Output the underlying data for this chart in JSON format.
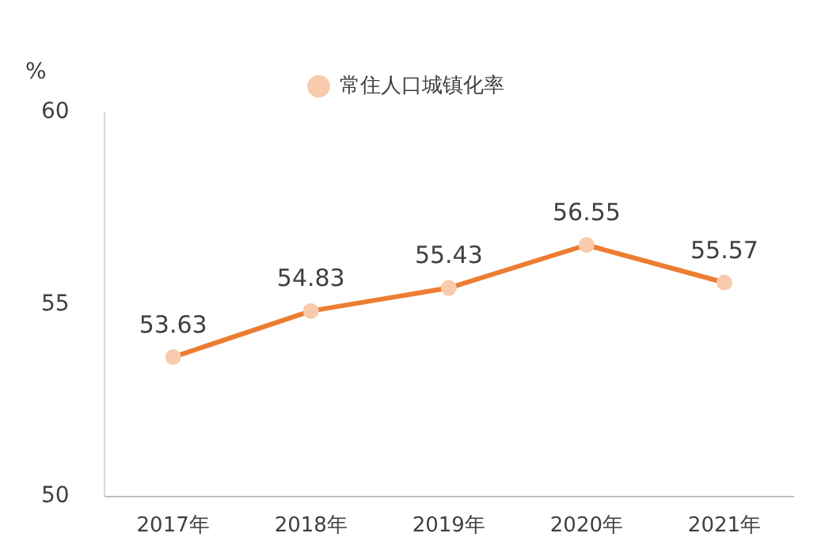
{
  "chart_data": {
    "type": "line",
    "ylabel": "%",
    "categories": [
      "2017年",
      "2018年",
      "2019年",
      "2020年",
      "2021年"
    ],
    "series": [
      {
        "name": "常住人口城镇化率",
        "color": "#ed7d31",
        "values": [
          53.63,
          54.83,
          55.43,
          56.55,
          55.57
        ]
      }
    ],
    "ylim": [
      50,
      60
    ],
    "yticks": [
      50,
      55,
      60
    ],
    "grid": false,
    "legend": "top",
    "marker": "circle",
    "line_style": "solid",
    "data_labels": true
  }
}
